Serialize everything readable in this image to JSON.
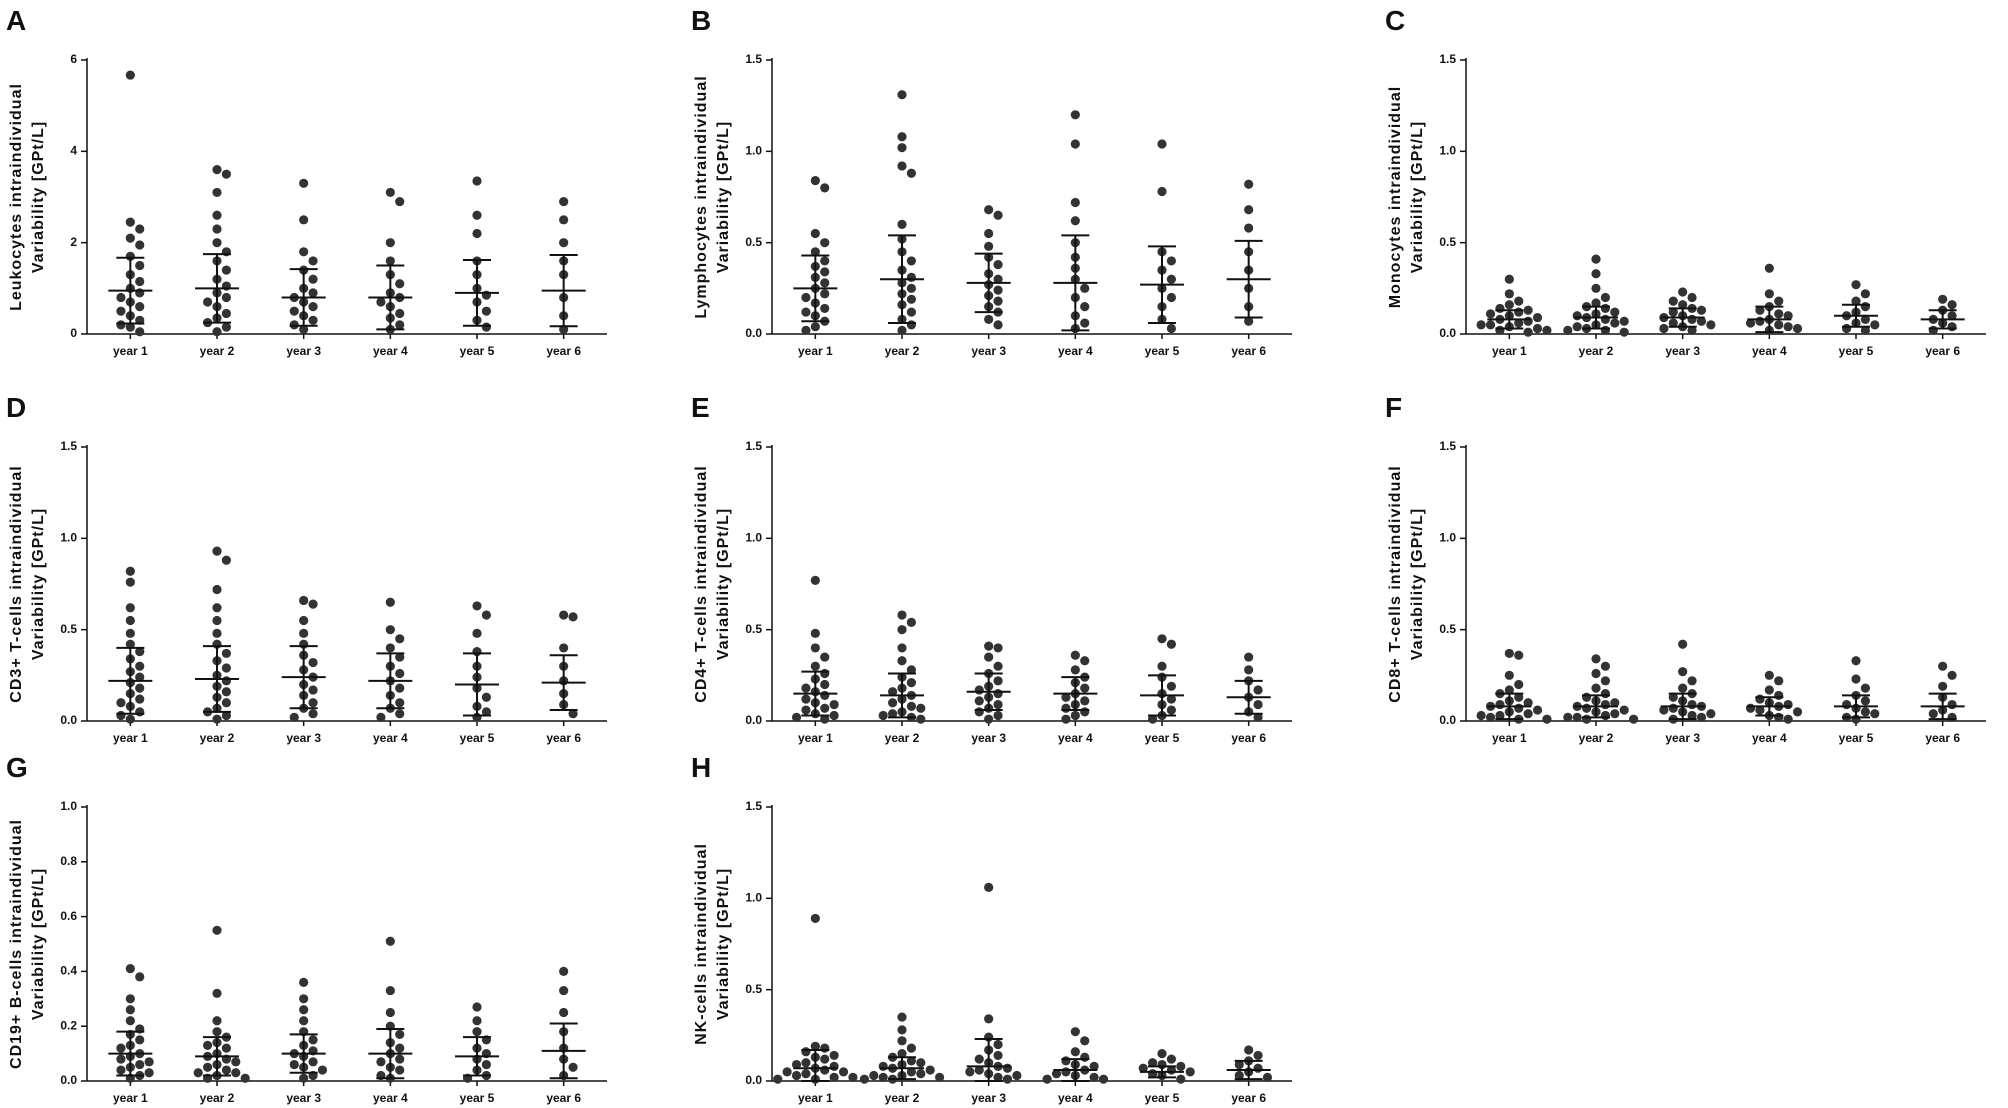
{
  "chart_data": [
    {
      "type": "dotplot",
      "panel": "A",
      "ylabel": [
        "Leukocytes intraindividual",
        "Variability [GPt/L]"
      ],
      "categories": [
        "year 1",
        "year 2",
        "year 3",
        "year 4",
        "year 5",
        "year 6"
      ],
      "ylim": [
        0,
        6
      ],
      "yticks": [
        0,
        2,
        4,
        6
      ],
      "color": "#333333",
      "points": [
        [
          5.67,
          2.45,
          2.3,
          2.1,
          1.95,
          1.7,
          1.5,
          1.3,
          1.15,
          1.0,
          0.9,
          0.8,
          0.7,
          0.6,
          0.5,
          0.4,
          0.3,
          0.2,
          0.15,
          0.05
        ],
        [
          3.6,
          3.5,
          3.1,
          2.6,
          2.3,
          2.0,
          1.8,
          1.6,
          1.4,
          1.2,
          1.05,
          0.9,
          0.8,
          0.7,
          0.6,
          0.45,
          0.35,
          0.25,
          0.15,
          0.05
        ],
        [
          3.3,
          2.5,
          1.8,
          1.6,
          1.4,
          1.2,
          1.0,
          0.9,
          0.8,
          0.7,
          0.6,
          0.5,
          0.4,
          0.3,
          0.2,
          0.1
        ],
        [
          3.1,
          2.9,
          2.0,
          1.6,
          1.3,
          1.1,
          0.9,
          0.8,
          0.7,
          0.6,
          0.45,
          0.35,
          0.2,
          0.1
        ],
        [
          3.35,
          2.6,
          2.2,
          1.6,
          1.3,
          1.0,
          0.85,
          0.7,
          0.5,
          0.3,
          0.15
        ],
        [
          2.9,
          2.5,
          2.0,
          1.6,
          1.3,
          0.8,
          0.4,
          0.1
        ]
      ],
      "mean": [
        0.95,
        1.0,
        0.8,
        0.8,
        0.9,
        0.95
      ],
      "sd": [
        0.72,
        0.75,
        0.62,
        0.7,
        0.72,
        0.78
      ]
    },
    {
      "type": "dotplot",
      "panel": "B",
      "ylabel": [
        "Lymphocytes intraindividual",
        "Variability [GPt/L]"
      ],
      "categories": [
        "year 1",
        "year 2",
        "year 3",
        "year 4",
        "year 5",
        "year 6"
      ],
      "ylim": [
        0,
        1.5
      ],
      "yticks": [
        {
          "value": 0,
          "label": "0.0"
        },
        {
          "value": 0.5,
          "label": "0.5"
        },
        {
          "value": 1,
          "label": "1.0"
        },
        {
          "value": 1.5,
          "label": "1.5"
        }
      ],
      "color": "#333333",
      "points": [
        [
          0.84,
          0.8,
          0.55,
          0.5,
          0.45,
          0.4,
          0.37,
          0.34,
          0.31,
          0.28,
          0.25,
          0.22,
          0.2,
          0.17,
          0.14,
          0.12,
          0.1,
          0.07,
          0.04,
          0.02
        ],
        [
          1.31,
          1.08,
          1.02,
          0.92,
          0.88,
          0.6,
          0.52,
          0.45,
          0.4,
          0.35,
          0.31,
          0.28,
          0.25,
          0.22,
          0.19,
          0.16,
          0.12,
          0.08,
          0.05,
          0.02
        ],
        [
          0.68,
          0.65,
          0.55,
          0.48,
          0.42,
          0.38,
          0.33,
          0.3,
          0.27,
          0.24,
          0.21,
          0.18,
          0.15,
          0.12,
          0.08,
          0.05
        ],
        [
          1.2,
          1.04,
          0.72,
          0.62,
          0.5,
          0.42,
          0.36,
          0.3,
          0.25,
          0.2,
          0.15,
          0.1,
          0.06,
          0.03
        ],
        [
          1.04,
          0.78,
          0.45,
          0.4,
          0.35,
          0.3,
          0.25,
          0.2,
          0.15,
          0.08,
          0.03
        ],
        [
          0.82,
          0.68,
          0.58,
          0.45,
          0.35,
          0.25,
          0.15,
          0.07
        ]
      ],
      "mean": [
        0.25,
        0.3,
        0.28,
        0.28,
        0.27,
        0.3
      ],
      "sd": [
        0.18,
        0.24,
        0.16,
        0.26,
        0.21,
        0.21
      ]
    },
    {
      "type": "dotplot",
      "panel": "C",
      "ylabel": [
        "Monocytes intraindividual",
        "Variability [GPt/L]"
      ],
      "categories": [
        "year 1",
        "year 2",
        "year 3",
        "year 4",
        "year 5",
        "year 6"
      ],
      "ylim": [
        0,
        1.5
      ],
      "yticks": [
        {
          "value": 0,
          "label": "0.0"
        },
        {
          "value": 0.5,
          "label": "0.5"
        },
        {
          "value": 1,
          "label": "1.0"
        },
        {
          "value": 1.5,
          "label": "1.5"
        }
      ],
      "color": "#333333",
      "points": [
        [
          0.3,
          0.22,
          0.18,
          0.16,
          0.14,
          0.13,
          0.12,
          0.11,
          0.1,
          0.09,
          0.08,
          0.07,
          0.06,
          0.05,
          0.05,
          0.04,
          0.03,
          0.02,
          0.02,
          0.01
        ],
        [
          0.41,
          0.33,
          0.25,
          0.2,
          0.17,
          0.15,
          0.14,
          0.12,
          0.11,
          0.1,
          0.09,
          0.08,
          0.07,
          0.06,
          0.05,
          0.04,
          0.03,
          0.02,
          0.02,
          0.01
        ],
        [
          0.23,
          0.2,
          0.18,
          0.16,
          0.14,
          0.13,
          0.12,
          0.1,
          0.09,
          0.08,
          0.07,
          0.06,
          0.05,
          0.04,
          0.03,
          0.02
        ],
        [
          0.36,
          0.22,
          0.18,
          0.15,
          0.13,
          0.11,
          0.1,
          0.08,
          0.07,
          0.06,
          0.05,
          0.04,
          0.03,
          0.02
        ],
        [
          0.27,
          0.22,
          0.18,
          0.15,
          0.12,
          0.1,
          0.08,
          0.06,
          0.05,
          0.03,
          0.02
        ],
        [
          0.19,
          0.16,
          0.13,
          0.1,
          0.08,
          0.06,
          0.04,
          0.02
        ]
      ],
      "mean": [
        0.08,
        0.09,
        0.09,
        0.08,
        0.1,
        0.08
      ],
      "sd": [
        0.05,
        0.06,
        0.05,
        0.07,
        0.06,
        0.05
      ]
    },
    {
      "type": "dotplot",
      "panel": "D",
      "ylabel": [
        "CD3+ T-cells intraindividual",
        "Variability [GPt/L]"
      ],
      "categories": [
        "year 1",
        "year 2",
        "year 3",
        "year 4",
        "year 5",
        "year 6"
      ],
      "ylim": [
        0,
        1.5
      ],
      "yticks": [
        {
          "value": 0,
          "label": "0.0"
        },
        {
          "value": 0.5,
          "label": "0.5"
        },
        {
          "value": 1,
          "label": "1.0"
        },
        {
          "value": 1.5,
          "label": "1.5"
        }
      ],
      "color": "#333333",
      "points": [
        [
          0.82,
          0.76,
          0.62,
          0.55,
          0.48,
          0.42,
          0.38,
          0.34,
          0.3,
          0.27,
          0.24,
          0.21,
          0.18,
          0.15,
          0.12,
          0.1,
          0.08,
          0.05,
          0.03,
          0.01
        ],
        [
          0.93,
          0.88,
          0.72,
          0.62,
          0.55,
          0.48,
          0.42,
          0.37,
          0.33,
          0.29,
          0.25,
          0.22,
          0.19,
          0.16,
          0.13,
          0.1,
          0.07,
          0.05,
          0.03,
          0.01
        ],
        [
          0.66,
          0.64,
          0.55,
          0.48,
          0.42,
          0.36,
          0.32,
          0.28,
          0.24,
          0.2,
          0.17,
          0.14,
          0.1,
          0.07,
          0.04,
          0.02
        ],
        [
          0.65,
          0.5,
          0.45,
          0.4,
          0.35,
          0.3,
          0.26,
          0.22,
          0.18,
          0.14,
          0.1,
          0.07,
          0.04,
          0.02
        ],
        [
          0.63,
          0.58,
          0.48,
          0.38,
          0.3,
          0.24,
          0.18,
          0.13,
          0.08,
          0.05,
          0.02
        ],
        [
          0.58,
          0.57,
          0.4,
          0.3,
          0.22,
          0.15,
          0.09,
          0.04
        ]
      ],
      "mean": [
        0.22,
        0.23,
        0.24,
        0.22,
        0.2,
        0.21
      ],
      "sd": [
        0.18,
        0.18,
        0.17,
        0.15,
        0.17,
        0.15
      ]
    },
    {
      "type": "dotplot",
      "panel": "E",
      "ylabel": [
        "CD4+ T-cells intraindividual",
        "Variability [GPt/L]"
      ],
      "categories": [
        "year 1",
        "year 2",
        "year 3",
        "year 4",
        "year 5",
        "year 6"
      ],
      "ylim": [
        0,
        1.5
      ],
      "yticks": [
        {
          "value": 0,
          "label": "0.0"
        },
        {
          "value": 0.5,
          "label": "0.5"
        },
        {
          "value": 1,
          "label": "1.0"
        },
        {
          "value": 1.5,
          "label": "1.5"
        }
      ],
      "color": "#333333",
      "points": [
        [
          0.77,
          0.48,
          0.4,
          0.35,
          0.3,
          0.26,
          0.23,
          0.2,
          0.18,
          0.16,
          0.14,
          0.12,
          0.1,
          0.09,
          0.07,
          0.06,
          0.04,
          0.03,
          0.02,
          0.01
        ],
        [
          0.58,
          0.54,
          0.5,
          0.4,
          0.33,
          0.28,
          0.24,
          0.21,
          0.18,
          0.16,
          0.14,
          0.12,
          0.1,
          0.08,
          0.07,
          0.05,
          0.04,
          0.03,
          0.02,
          0.01
        ],
        [
          0.41,
          0.4,
          0.35,
          0.3,
          0.26,
          0.22,
          0.19,
          0.17,
          0.15,
          0.13,
          0.11,
          0.09,
          0.07,
          0.05,
          0.03,
          0.01
        ],
        [
          0.36,
          0.33,
          0.28,
          0.24,
          0.21,
          0.18,
          0.15,
          0.13,
          0.11,
          0.09,
          0.07,
          0.05,
          0.03,
          0.01
        ],
        [
          0.45,
          0.42,
          0.3,
          0.24,
          0.19,
          0.15,
          0.12,
          0.09,
          0.06,
          0.03,
          0.01
        ],
        [
          0.35,
          0.28,
          0.22,
          0.17,
          0.13,
          0.09,
          0.05,
          0.02
        ]
      ],
      "mean": [
        0.15,
        0.14,
        0.16,
        0.15,
        0.14,
        0.13
      ],
      "sd": [
        0.12,
        0.12,
        0.1,
        0.09,
        0.11,
        0.09
      ]
    },
    {
      "type": "dotplot",
      "panel": "F",
      "ylabel": [
        "CD8+ T-cells intraindividual",
        "Variability [GPt/L]"
      ],
      "categories": [
        "year 1",
        "year 2",
        "year 3",
        "year 4",
        "year 5",
        "year 6"
      ],
      "ylim": [
        0,
        1.5
      ],
      "yticks": [
        {
          "value": 0,
          "label": "0.0"
        },
        {
          "value": 0.5,
          "label": "0.5"
        },
        {
          "value": 1,
          "label": "1.0"
        },
        {
          "value": 1.5,
          "label": "1.5"
        }
      ],
      "color": "#333333",
      "points": [
        [
          0.37,
          0.36,
          0.25,
          0.2,
          0.17,
          0.15,
          0.13,
          0.11,
          0.1,
          0.09,
          0.08,
          0.07,
          0.06,
          0.05,
          0.04,
          0.03,
          0.03,
          0.02,
          0.01,
          0.01
        ],
        [
          0.34,
          0.3,
          0.26,
          0.22,
          0.18,
          0.15,
          0.13,
          0.11,
          0.1,
          0.09,
          0.08,
          0.07,
          0.06,
          0.05,
          0.04,
          0.03,
          0.02,
          0.02,
          0.01,
          0.01
        ],
        [
          0.42,
          0.27,
          0.22,
          0.18,
          0.15,
          0.13,
          0.11,
          0.09,
          0.08,
          0.07,
          0.06,
          0.05,
          0.04,
          0.03,
          0.02,
          0.01
        ],
        [
          0.25,
          0.22,
          0.17,
          0.14,
          0.12,
          0.1,
          0.09,
          0.08,
          0.07,
          0.06,
          0.05,
          0.03,
          0.02,
          0.01
        ],
        [
          0.33,
          0.23,
          0.18,
          0.14,
          0.11,
          0.09,
          0.07,
          0.05,
          0.04,
          0.02,
          0.01
        ],
        [
          0.3,
          0.25,
          0.19,
          0.13,
          0.09,
          0.06,
          0.04,
          0.02
        ]
      ],
      "mean": [
        0.08,
        0.08,
        0.08,
        0.08,
        0.08,
        0.08
      ],
      "sd": [
        0.07,
        0.06,
        0.07,
        0.05,
        0.06,
        0.07
      ]
    },
    {
      "type": "dotplot",
      "panel": "G",
      "ylabel": [
        "CD19+ B-cells intraindividual",
        "Variability [GPt/L]"
      ],
      "categories": [
        "year 1",
        "year 2",
        "year 3",
        "year 4",
        "year 5",
        "year 6"
      ],
      "ylim": [
        0,
        1
      ],
      "yticks": [
        {
          "value": 0,
          "label": "0.0"
        },
        {
          "value": 0.2,
          "label": "0.2"
        },
        {
          "value": 0.4,
          "label": "0.4"
        },
        {
          "value": 0.6,
          "label": "0.6"
        },
        {
          "value": 0.8,
          "label": "0.8"
        },
        {
          "value": 1,
          "label": "1.0"
        }
      ],
      "color": "#333333",
      "points": [
        [
          0.41,
          0.38,
          0.3,
          0.26,
          0.22,
          0.19,
          0.17,
          0.15,
          0.13,
          0.12,
          0.1,
          0.09,
          0.08,
          0.07,
          0.06,
          0.05,
          0.04,
          0.03,
          0.02,
          0.01
        ],
        [
          0.55,
          0.32,
          0.22,
          0.18,
          0.16,
          0.14,
          0.13,
          0.12,
          0.1,
          0.09,
          0.08,
          0.07,
          0.06,
          0.05,
          0.04,
          0.03,
          0.03,
          0.02,
          0.01,
          0.01
        ],
        [
          0.36,
          0.3,
          0.26,
          0.22,
          0.18,
          0.15,
          0.13,
          0.11,
          0.1,
          0.09,
          0.07,
          0.06,
          0.05,
          0.04,
          0.02,
          0.01
        ],
        [
          0.51,
          0.33,
          0.25,
          0.2,
          0.17,
          0.14,
          0.12,
          0.1,
          0.08,
          0.07,
          0.05,
          0.04,
          0.02,
          0.01
        ],
        [
          0.27,
          0.22,
          0.18,
          0.15,
          0.12,
          0.1,
          0.08,
          0.06,
          0.04,
          0.02,
          0.01
        ],
        [
          0.4,
          0.33,
          0.25,
          0.18,
          0.12,
          0.08,
          0.05,
          0.02
        ]
      ],
      "mean": [
        0.1,
        0.09,
        0.1,
        0.1,
        0.09,
        0.11
      ],
      "sd": [
        0.08,
        0.07,
        0.07,
        0.09,
        0.07,
        0.1
      ]
    },
    {
      "type": "dotplot",
      "panel": "H",
      "ylabel": [
        "NK-cells intraindividual",
        "Variability [GPt/L]"
      ],
      "categories": [
        "year 1",
        "year 2",
        "year 3",
        "year 4",
        "year 5",
        "year 6"
      ],
      "ylim": [
        0,
        1.5
      ],
      "yticks": [
        {
          "value": 0,
          "label": "0.0"
        },
        {
          "value": 0.5,
          "label": "0.5"
        },
        {
          "value": 1,
          "label": "1.0"
        },
        {
          "value": 1.5,
          "label": "1.5"
        }
      ],
      "color": "#333333",
      "points": [
        [
          0.89,
          0.19,
          0.18,
          0.16,
          0.14,
          0.13,
          0.12,
          0.1,
          0.09,
          0.08,
          0.07,
          0.06,
          0.05,
          0.05,
          0.04,
          0.03,
          0.02,
          0.02,
          0.01,
          0.01
        ],
        [
          0.35,
          0.28,
          0.22,
          0.18,
          0.15,
          0.13,
          0.11,
          0.1,
          0.09,
          0.08,
          0.07,
          0.06,
          0.05,
          0.04,
          0.03,
          0.03,
          0.02,
          0.02,
          0.01,
          0.01
        ],
        [
          1.06,
          0.34,
          0.24,
          0.2,
          0.17,
          0.14,
          0.12,
          0.1,
          0.08,
          0.07,
          0.06,
          0.05,
          0.04,
          0.03,
          0.02,
          0.01
        ],
        [
          0.27,
          0.22,
          0.16,
          0.13,
          0.11,
          0.09,
          0.08,
          0.06,
          0.05,
          0.04,
          0.03,
          0.02,
          0.01,
          0.01
        ],
        [
          0.15,
          0.12,
          0.1,
          0.09,
          0.08,
          0.07,
          0.06,
          0.05,
          0.04,
          0.03,
          0.01
        ],
        [
          0.17,
          0.14,
          0.11,
          0.09,
          0.07,
          0.05,
          0.03,
          0.02
        ]
      ],
      "mean": [
        0.07,
        0.07,
        0.08,
        0.06,
        0.05,
        0.06
      ],
      "sd": [
        0.1,
        0.06,
        0.15,
        0.06,
        0.03,
        0.05
      ]
    }
  ]
}
